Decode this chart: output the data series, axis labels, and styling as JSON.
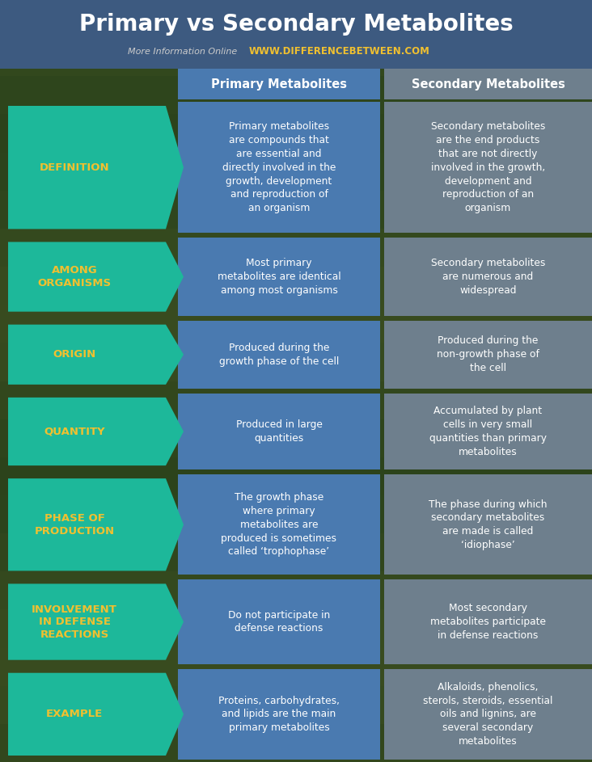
{
  "title": "Primary vs Secondary Metabolites",
  "subtitle_plain": "More Information Online",
  "subtitle_url": "WWW.DIFFERENCEBETWEEN.COM",
  "title_bg_color": "#3d5a80",
  "header_primary_color": "#4a7ab0",
  "header_secondary_color": "#6e7f8d",
  "cell_primary_color": "#4a7ab0",
  "cell_secondary_color": "#6e7f8d",
  "arrow_color": "#1db89a",
  "arrow_text_color": "#f0c030",
  "header_text_color": "#ffffff",
  "cell_text_color": "#ffffff",
  "title_text_color": "#ffffff",
  "url_text_color": "#f0c030",
  "subtitle_text_color": "#cccccc",
  "bg_color": "#3a5a35",
  "rows": [
    {
      "label": "DEFINITION",
      "primary": "Primary metabolites\nare compounds that\nare essential and\ndirectly involved in the\ngrowth, development\nand reproduction of\nan organism",
      "secondary": "Secondary metabolites\nare the end products\nthat are not directly\ninvolved in the growth,\ndevelopment and\nreproduction of an\norganism"
    },
    {
      "label": "AMONG\nORGANISMS",
      "primary": "Most primary\nmetabolites are identical\namong most organisms",
      "secondary": "Secondary metabolites\nare numerous and\nwidespread"
    },
    {
      "label": "ORIGIN",
      "primary": "Produced during the\ngrowth phase of the cell",
      "secondary": "Produced during the\nnon-growth phase of\nthe cell"
    },
    {
      "label": "QUANTITY",
      "primary": "Produced in large\nquantities",
      "secondary": "Accumulated by plant\ncells in very small\nquantities than primary\nmetabolites"
    },
    {
      "label": "PHASE OF\nPRODUCTION",
      "primary": "The growth phase\nwhere primary\nmetabolites are\nproduced is sometimes\ncalled ‘trophophase’",
      "secondary": "The phase during which\nsecondary metabolites\nare made is called\n‘idiophase’"
    },
    {
      "label": "INVOLVEMENT\nIN DEFENSE\nREACTIONS",
      "primary": "Do not participate in\ndefense reactions",
      "secondary": "Most secondary\nmetabolites participate\nin defense reactions"
    },
    {
      "label": "EXAMPLE",
      "primary": "Proteins, carbohydrates,\nand lipids are the main\nprimary metabolites",
      "secondary": "Alkaloids, phenolics,\nsterols, steroids, essential\noils and lignins, are\nseveral secondary\nmetabolites"
    }
  ],
  "col_header_primary": "Primary Metabolites",
  "col_header_secondary": "Secondary Metabolites"
}
